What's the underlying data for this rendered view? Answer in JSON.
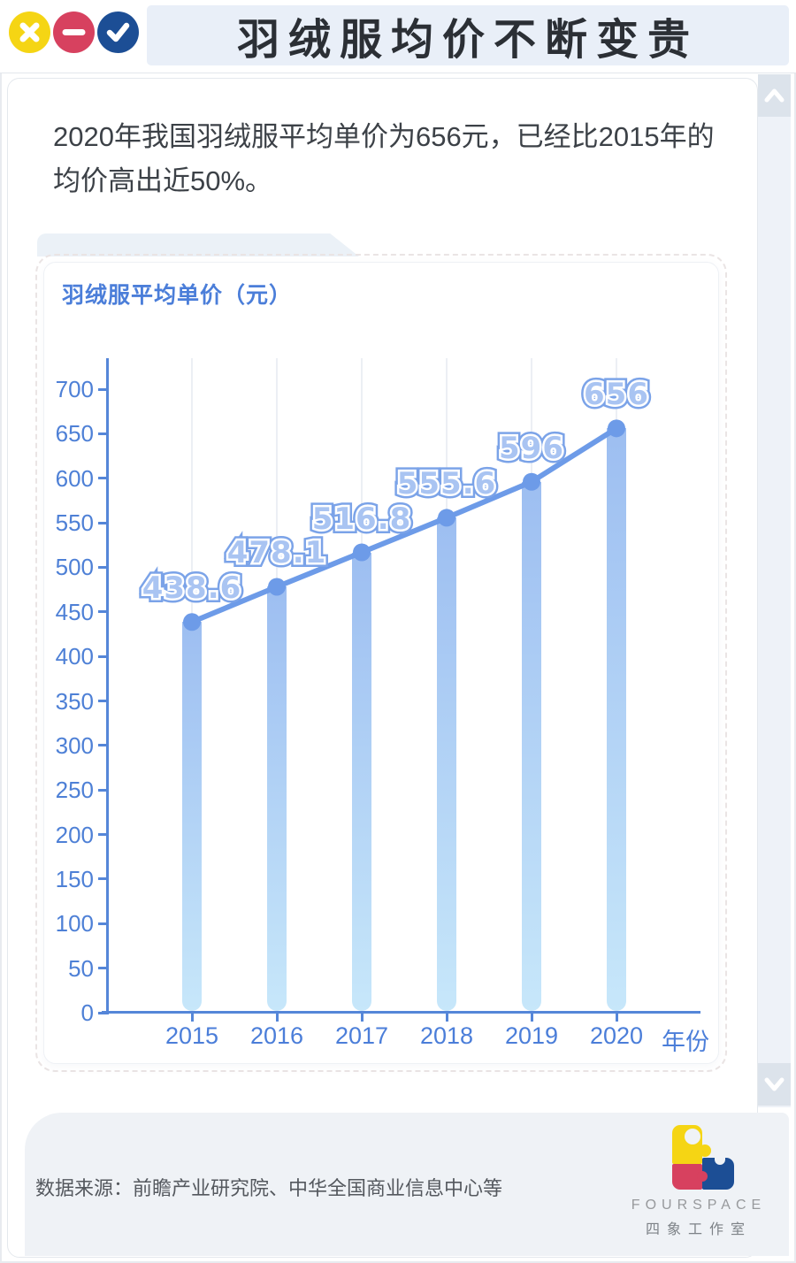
{
  "window": {
    "title": "羽绒服均价不断变贵",
    "controls": [
      {
        "name": "close",
        "icon": "x-icon",
        "color": "#F5D514"
      },
      {
        "name": "minimize",
        "icon": "minus-icon",
        "color": "#D7415F"
      },
      {
        "name": "confirm",
        "icon": "check-icon",
        "color": "#1C4E95"
      }
    ]
  },
  "intro": {
    "text": "2020年我国羽绒服平均单价为656元，已经比2015年的均价高出近50%。"
  },
  "chart_data": {
    "type": "bar",
    "overlay": "line-with-markers",
    "title": "羽绒服平均单价（元）",
    "categories": [
      "2015",
      "2016",
      "2017",
      "2018",
      "2019",
      "2020"
    ],
    "values": [
      438.6,
      478.1,
      516.8,
      555.6,
      596,
      656
    ],
    "value_labels": [
      "438.6",
      "478.1",
      "516.8",
      "555.6",
      "596",
      "656"
    ],
    "xlabel": "年份",
    "ylabel": "",
    "ylim": [
      0,
      700
    ],
    "yticks": [
      0,
      50,
      100,
      150,
      200,
      250,
      300,
      350,
      400,
      450,
      500,
      550,
      600,
      650,
      700
    ],
    "grid": "vertical-light",
    "legend": "none"
  },
  "scrollbar": {
    "up_icon": "chevron-up-icon",
    "down_icon": "chevron-down-icon"
  },
  "footer": {
    "source": "数据来源：前瞻产业研究院、中华全国商业信息中心等",
    "brand_en": "FOURSPACE",
    "brand_cn": "四象工作室"
  },
  "colors": {
    "bar_top": "#9DBEF1",
    "bar_bottom": "#C7E7FA",
    "line": "#6D9BE8",
    "marker": "#6D9BE8",
    "axis": "#5586D8",
    "tick_label": "#4E80D6",
    "value_fill": "#A9C4F2",
    "value_outline": "#7BA3E8",
    "chart_title": "#4B7ED9",
    "gridline": "#ECEFF4",
    "title_panel_bg": "#E9EFF8",
    "tab_bg": "#EBF1F7",
    "footer_bg": "#EFF2F6",
    "control_yellow": "#F5D514",
    "control_red": "#D7415F",
    "control_blue": "#1C4E95"
  }
}
